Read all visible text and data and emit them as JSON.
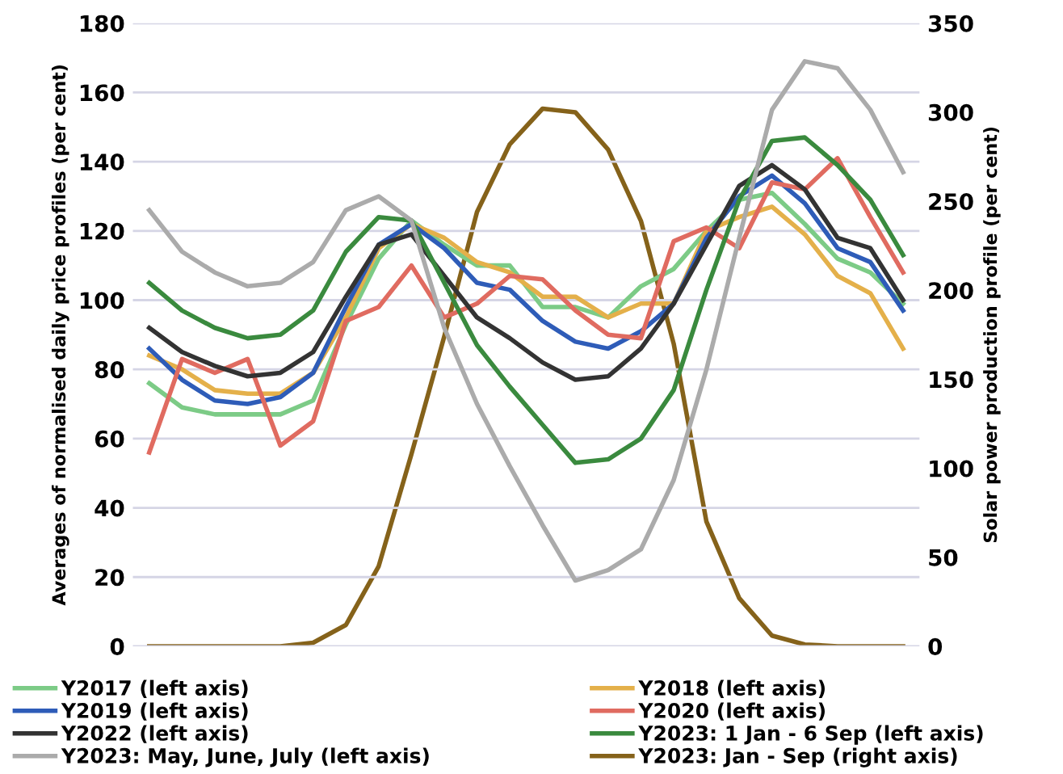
{
  "chart_data": {
    "type": "line",
    "ylabel": "Averages of normalised daily price profiles (per cent)",
    "y2label": "Solar power production profile (per cent)",
    "categories": [
      null,
      null,
      null,
      null,
      null,
      null,
      null,
      null,
      null,
      null,
      null,
      null,
      null,
      null,
      null,
      null,
      null,
      null,
      null,
      null,
      null,
      null,
      null,
      null
    ],
    "ylim": [
      0,
      180
    ],
    "yticks": [
      0,
      20,
      40,
      60,
      80,
      100,
      120,
      140,
      160,
      180
    ],
    "y2lim": [
      0,
      350
    ],
    "y2ticks": [
      0,
      50,
      100,
      150,
      200,
      250,
      300,
      350
    ],
    "grid": "y",
    "legend": "bottom",
    "marker": "none",
    "line_style": "solid",
    "series": [
      {
        "name": "Y2017 (left axis)",
        "color": "#7ccb86",
        "values": [
          76,
          69,
          67,
          67,
          67,
          71,
          93,
          112,
          123,
          116,
          110,
          110,
          98,
          98,
          95,
          104,
          109,
          120,
          129,
          131,
          122,
          112,
          108,
          99
        ]
      },
      {
        "name": "Y2018 (left axis)",
        "color": "#e4b04a",
        "values": [
          84,
          80,
          74,
          73,
          73,
          79,
          95,
          115,
          122,
          118,
          111,
          108,
          101,
          101,
          95,
          99,
          99,
          120,
          124,
          127,
          119,
          107,
          102,
          86
        ]
      },
      {
        "name": "Y2019 (left axis)",
        "color": "#2e5cb8",
        "values": [
          86,
          77,
          71,
          70,
          72,
          79,
          98,
          116,
          122,
          115,
          105,
          103,
          94,
          88,
          86,
          91,
          99,
          118,
          130,
          136,
          128,
          115,
          111,
          97
        ]
      },
      {
        "name": "Y2020 (left axis)",
        "color": "#e06b60",
        "values": [
          56,
          83,
          79,
          83,
          58,
          65,
          94,
          98,
          110,
          95,
          99,
          107,
          106,
          97,
          90,
          89,
          117,
          121,
          115,
          134,
          132,
          141,
          124,
          108
        ]
      },
      {
        "name": "Y2022 (left axis)",
        "color": "#333333",
        "values": [
          92,
          85,
          81,
          78,
          79,
          85,
          101,
          116,
          119,
          107,
          95,
          89,
          82,
          77,
          78,
          86,
          99,
          116,
          133,
          139,
          132,
          118,
          115,
          100
        ]
      },
      {
        "name": "Y2023: 1 Jan - 6 Sep (left axis)",
        "color": "#3a8a3e",
        "values": [
          105,
          97,
          92,
          89,
          90,
          97,
          114,
          124,
          123,
          105,
          87,
          75,
          64,
          53,
          54,
          60,
          74,
          103,
          129,
          146,
          147,
          139,
          129,
          113
        ]
      },
      {
        "name": "Y2023: May, June, July (left axis)",
        "color": "#ababab",
        "values": [
          126,
          114,
          108,
          104,
          105,
          111,
          126,
          130,
          123,
          92,
          70,
          52,
          35,
          19,
          22,
          28,
          48,
          80,
          118,
          155,
          169,
          167,
          155,
          137
        ]
      },
      {
        "name": "Y2023: Jan - Sep (right axis)",
        "color": "#85621a",
        "axis": "y2",
        "values": [
          0,
          0,
          0,
          0,
          0,
          2,
          12,
          45,
          108,
          174,
          244,
          282,
          302,
          300,
          279,
          239,
          170,
          70,
          27,
          6,
          1,
          0,
          0,
          0
        ]
      }
    ]
  }
}
